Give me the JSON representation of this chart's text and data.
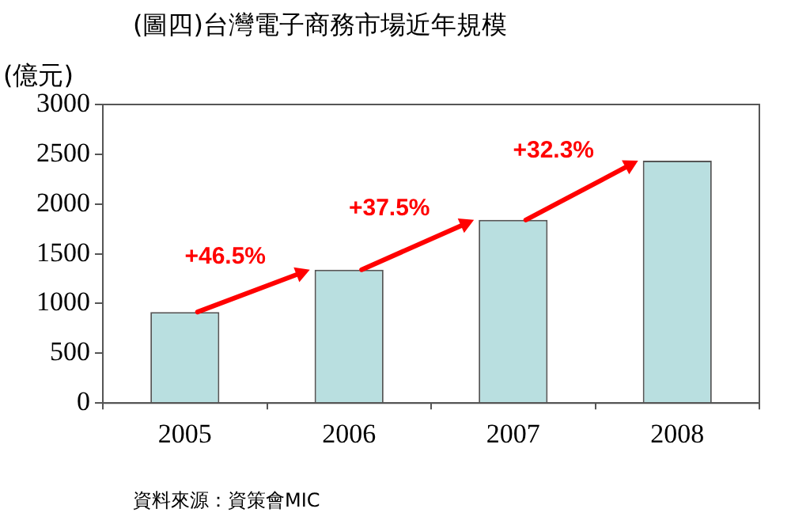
{
  "chart_data": {
    "type": "bar",
    "title": "(圖四)台灣電子商務市場近年規模",
    "ylabel": "(億元)",
    "categories": [
      "2005",
      "2006",
      "2007",
      "2008"
    ],
    "values": [
      915,
      1340,
      1840,
      2435
    ],
    "color": "#b9dfe0",
    "ylim": [
      0,
      3000
    ],
    "yticks": [
      0,
      500,
      1000,
      1500,
      2000,
      2500,
      3000
    ],
    "grid": false,
    "annotations": [
      {
        "text": "+46.5%",
        "x": "2005",
        "y": 915
      },
      {
        "text": "+37.5%",
        "x": "2006",
        "y": 1340
      },
      {
        "text": "+32.3%",
        "x": "2007",
        "y": 1840
      },
      "資料來源：資策會MIC"
    ]
  }
}
